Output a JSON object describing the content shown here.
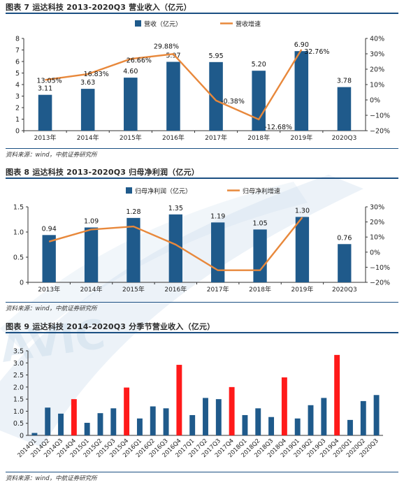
{
  "colors": {
    "bar": "#1f5a8b",
    "line": "#e8883b",
    "highlight": "#ff1a1a",
    "rule": "#1b4f82",
    "watermark": "#c8daea"
  },
  "watermark_text": "AVIC",
  "chart_data": [
    {
      "type": "bar",
      "title": "图表 7 运达科技 2013-2020Q3 营业收入（亿元）",
      "source": "资料来源：wind，中航证券研究所",
      "categories": [
        "2013年",
        "2014年",
        "2015年",
        "2016年",
        "2017年",
        "2018年",
        "2019年",
        "2020Q3"
      ],
      "series": [
        {
          "name": "营收（亿元）",
          "type": "bar",
          "axis": "left",
          "values": [
            3.11,
            3.63,
            4.6,
            5.97,
            5.95,
            5.2,
            6.9,
            3.78
          ],
          "labels": [
            "3.11",
            "3.63",
            "4.60",
            "5.97",
            "5.95",
            "5.20",
            "6.90",
            "3.78"
          ]
        },
        {
          "name": "营收增速",
          "type": "line",
          "axis": "right",
          "values": [
            13.05,
            16.83,
            26.66,
            29.88,
            -0.38,
            -12.68,
            32.76,
            null
          ],
          "labels": [
            "13.05%",
            "16.83%",
            "26.66%",
            "29.88%",
            "-0.38%",
            "-12.68%",
            "32.76%",
            ""
          ]
        }
      ],
      "ylim": [
        0,
        8
      ],
      "yticks": [
        0,
        1,
        2,
        3,
        4,
        5,
        6,
        7,
        8
      ],
      "ytick_labels": [
        "0",
        "1",
        "2",
        "3",
        "4",
        "5",
        "6",
        "7",
        "8"
      ],
      "y2lim": [
        -20,
        40
      ],
      "y2ticks": [
        -20,
        -10,
        0,
        10,
        20,
        30,
        40
      ],
      "y2tick_labels": [
        "−20%",
        "−10%",
        "0%",
        "10%",
        "20%",
        "30%",
        "40%"
      ],
      "legend": "top-center"
    },
    {
      "type": "bar",
      "title": "图表 8 运达科技 2013-2020Q3 归母净利润（亿元）",
      "source": "资料来源：wind，中航证券研究所",
      "categories": [
        "2013年",
        "2014年",
        "2015年",
        "2016年",
        "2017年",
        "2018年",
        "2019年",
        "2020Q3"
      ],
      "series": [
        {
          "name": "归母净利润（亿元）",
          "type": "bar",
          "axis": "left",
          "values": [
            0.94,
            1.09,
            1.28,
            1.35,
            1.19,
            1.05,
            1.3,
            0.76
          ],
          "labels": [
            "0.94",
            "1.09",
            "1.28",
            "1.35",
            "1.19",
            "1.05",
            "1.30",
            "0.76"
          ]
        },
        {
          "name": "归母净利增速",
          "type": "line",
          "axis": "right",
          "values": [
            7,
            15,
            17,
            5,
            -12,
            -12,
            23,
            null
          ],
          "labels": [
            "",
            "",
            "",
            "",
            "",
            "",
            "",
            ""
          ]
        }
      ],
      "ylim": [
        0,
        1.5
      ],
      "yticks": [
        0,
        0.5,
        1.0,
        1.5
      ],
      "ytick_labels": [
        "0",
        "0.5",
        "1.0",
        "1.5"
      ],
      "y2lim": [
        -20,
        30
      ],
      "y2ticks": [
        -20,
        -10,
        0,
        10,
        20,
        30
      ],
      "y2tick_labels": [
        "−20%",
        "−10%",
        "0%",
        "10%",
        "20%",
        "30%"
      ],
      "legend": "top-center"
    },
    {
      "type": "bar",
      "title": "图表 9 运达科技 2014-2020Q3 分季节营业收入（亿元）",
      "source": "资料来源：wind，中航证券研究所",
      "categories": [
        "2014Q1",
        "2014Q2",
        "2014Q3",
        "2014Q4",
        "2015Q1",
        "2015Q2",
        "2015Q3",
        "2015Q4",
        "2016Q1",
        "2016Q2",
        "2016Q3",
        "2016Q4",
        "2017Q1",
        "2017Q2",
        "2017Q3",
        "2017Q4",
        "2018Q1",
        "2018Q2",
        "2018Q3",
        "2018Q4",
        "2019Q1",
        "2019Q2",
        "2019Q3",
        "2019Q4",
        "2020Q1",
        "2020Q2",
        "2020Q3"
      ],
      "series": [
        {
          "type": "bar",
          "axis": "left",
          "values": [
            0.1,
            1.15,
            0.9,
            1.5,
            0.52,
            0.92,
            1.12,
            1.98,
            0.7,
            1.2,
            1.12,
            2.92,
            0.84,
            1.55,
            1.5,
            2.0,
            0.84,
            1.12,
            0.76,
            2.4,
            0.7,
            1.25,
            1.55,
            3.33,
            0.64,
            1.42,
            1.67
          ],
          "highlight": [
            false,
            false,
            false,
            true,
            false,
            false,
            false,
            true,
            false,
            false,
            false,
            true,
            false,
            false,
            false,
            true,
            false,
            false,
            false,
            true,
            false,
            false,
            false,
            true,
            false,
            false,
            false
          ]
        }
      ],
      "ylim": [
        0,
        3.5
      ],
      "yticks": [
        0,
        0.5,
        1.0,
        1.5,
        2.0,
        2.5,
        3.0,
        3.5
      ],
      "ytick_labels": [
        "0",
        "0.5",
        "1.0",
        "1.5",
        "2.0",
        "2.5",
        "3.0",
        "3.5"
      ]
    }
  ]
}
